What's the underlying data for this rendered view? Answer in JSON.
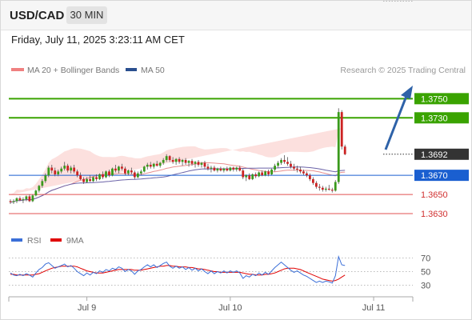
{
  "header": {
    "symbol": "USD/CAD",
    "timeframe": "30 MIN"
  },
  "datetime": "Friday, July 11, 2025 3:23:11 AM CET",
  "legend_top": {
    "bb_label": "MA 20 + Bollinger Bands",
    "ma50_label": "MA 50",
    "credit": "Research © 2025 Trading Central",
    "bb_color": "#f08080",
    "ma50_color": "#2a4f8f"
  },
  "legend_rsi": {
    "rsi_label": "RSI",
    "ma9_label": "9MA",
    "rsi_color": "#3b6fd8",
    "ma9_color": "#e00000"
  },
  "levels": [
    {
      "value": 1.375,
      "label": "1.3750",
      "kind": "resistance",
      "color": "#3aa300"
    },
    {
      "value": 1.373,
      "label": "1.3730",
      "kind": "resistance",
      "color": "#3aa300"
    },
    {
      "value": 1.3692,
      "label": "1.3692",
      "kind": "last",
      "color": "#333333"
    },
    {
      "value": 1.367,
      "label": "1.3670",
      "kind": "pivot",
      "color": "#1a5fd0"
    },
    {
      "value": 1.365,
      "label": "1.3650",
      "kind": "support",
      "color": "#e05050"
    },
    {
      "value": 1.363,
      "label": "1.3630",
      "kind": "support",
      "color": "#e05050"
    }
  ],
  "rsi_ticks": [
    "70",
    "50",
    "30"
  ],
  "chart_data": {
    "type": "candlestick",
    "x_tick_labels": [
      "Jul 9",
      "Jul 10",
      "Jul 11"
    ],
    "x_tick_positions_bar_index": [
      24,
      69,
      114
    ],
    "y_range": [
      1.362,
      1.3772
    ],
    "rsi_range": [
      20,
      80
    ],
    "bar_count": 118,
    "candles": [
      [
        1.3643,
        1.3645,
        1.364,
        1.3642
      ],
      [
        1.3642,
        1.3645,
        1.364,
        1.3643
      ],
      [
        1.3643,
        1.3647,
        1.3641,
        1.3646
      ],
      [
        1.3646,
        1.3648,
        1.3643,
        1.3644
      ],
      [
        1.3644,
        1.3647,
        1.3641,
        1.3645
      ],
      [
        1.3645,
        1.3649,
        1.3643,
        1.3648
      ],
      [
        1.3648,
        1.365,
        1.3642,
        1.3643
      ],
      [
        1.3643,
        1.365,
        1.3642,
        1.3649
      ],
      [
        1.3649,
        1.3655,
        1.3648,
        1.3654
      ],
      [
        1.3654,
        1.366,
        1.3652,
        1.3659
      ],
      [
        1.3659,
        1.3666,
        1.3657,
        1.3664
      ],
      [
        1.3664,
        1.3672,
        1.3662,
        1.367
      ],
      [
        1.367,
        1.368,
        1.3668,
        1.3678
      ],
      [
        1.3678,
        1.3681,
        1.3672,
        1.3675
      ],
      [
        1.3675,
        1.3678,
        1.3669,
        1.3671
      ],
      [
        1.3671,
        1.3676,
        1.3669,
        1.3674
      ],
      [
        1.3674,
        1.3679,
        1.3672,
        1.3677
      ],
      [
        1.3677,
        1.3684,
        1.3675,
        1.368
      ],
      [
        1.368,
        1.3682,
        1.3673,
        1.3675
      ],
      [
        1.3675,
        1.368,
        1.3672,
        1.3678
      ],
      [
        1.3678,
        1.3681,
        1.3672,
        1.3674
      ],
      [
        1.3674,
        1.3676,
        1.3668,
        1.367
      ],
      [
        1.367,
        1.3673,
        1.3665,
        1.3666
      ],
      [
        1.3666,
        1.3668,
        1.3661,
        1.3663
      ],
      [
        1.3663,
        1.3668,
        1.3662,
        1.3666
      ],
      [
        1.3666,
        1.367,
        1.3663,
        1.3664
      ],
      [
        1.3664,
        1.3669,
        1.3663,
        1.3668
      ],
      [
        1.3668,
        1.3671,
        1.3664,
        1.3666
      ],
      [
        1.3666,
        1.3672,
        1.3665,
        1.3671
      ],
      [
        1.3671,
        1.3674,
        1.3666,
        1.3668
      ],
      [
        1.3668,
        1.3675,
        1.3667,
        1.3674
      ],
      [
        1.3674,
        1.3676,
        1.3668,
        1.367
      ],
      [
        1.367,
        1.3678,
        1.3669,
        1.3677
      ],
      [
        1.3677,
        1.3681,
        1.3673,
        1.3675
      ],
      [
        1.3675,
        1.368,
        1.3672,
        1.3679
      ],
      [
        1.3679,
        1.3682,
        1.3675,
        1.3677
      ],
      [
        1.3677,
        1.3679,
        1.367,
        1.3672
      ],
      [
        1.3672,
        1.3676,
        1.367,
        1.3675
      ],
      [
        1.3675,
        1.3678,
        1.3671,
        1.3673
      ],
      [
        1.3673,
        1.3675,
        1.3666,
        1.3668
      ],
      [
        1.3668,
        1.3674,
        1.3667,
        1.3672
      ],
      [
        1.3672,
        1.3676,
        1.367,
        1.3674
      ],
      [
        1.3674,
        1.368,
        1.3673,
        1.3679
      ],
      [
        1.3679,
        1.3683,
        1.3676,
        1.3681
      ],
      [
        1.3681,
        1.3684,
        1.3677,
        1.3679
      ],
      [
        1.3679,
        1.3683,
        1.3677,
        1.3682
      ],
      [
        1.3682,
        1.3685,
        1.3679,
        1.368
      ],
      [
        1.368,
        1.3684,
        1.3678,
        1.3683
      ],
      [
        1.3683,
        1.3688,
        1.3681,
        1.3686
      ],
      [
        1.3686,
        1.3692,
        1.3684,
        1.369
      ],
      [
        1.369,
        1.3691,
        1.3684,
        1.3686
      ],
      [
        1.3686,
        1.3689,
        1.3682,
        1.3684
      ],
      [
        1.3684,
        1.3688,
        1.3681,
        1.3687
      ],
      [
        1.3687,
        1.3689,
        1.3682,
        1.3684
      ],
      [
        1.3684,
        1.3687,
        1.368,
        1.3686
      ],
      [
        1.3686,
        1.3688,
        1.3681,
        1.3683
      ],
      [
        1.3683,
        1.3686,
        1.3679,
        1.3685
      ],
      [
        1.3685,
        1.3687,
        1.368,
        1.3682
      ],
      [
        1.3682,
        1.3685,
        1.3678,
        1.3684
      ],
      [
        1.3684,
        1.3686,
        1.3679,
        1.3681
      ],
      [
        1.3681,
        1.3684,
        1.3678,
        1.3683
      ],
      [
        1.3683,
        1.3685,
        1.3677,
        1.3679
      ],
      [
        1.3679,
        1.3682,
        1.3675,
        1.3677
      ],
      [
        1.3677,
        1.368,
        1.3673,
        1.3678
      ],
      [
        1.3678,
        1.368,
        1.3674,
        1.3675
      ],
      [
        1.3675,
        1.3678,
        1.3673,
        1.3677
      ],
      [
        1.3677,
        1.3679,
        1.3674,
        1.3675
      ],
      [
        1.3675,
        1.3678,
        1.3673,
        1.3677
      ],
      [
        1.3677,
        1.3679,
        1.3674,
        1.3675
      ],
      [
        1.3675,
        1.3679,
        1.3674,
        1.3678
      ],
      [
        1.3678,
        1.3679,
        1.3674,
        1.3676
      ],
      [
        1.3676,
        1.3679,
        1.3674,
        1.3678
      ],
      [
        1.3678,
        1.368,
        1.3674,
        1.3675
      ],
      [
        1.3675,
        1.3677,
        1.3666,
        1.3668
      ],
      [
        1.3668,
        1.3671,
        1.3664,
        1.367
      ],
      [
        1.367,
        1.3672,
        1.3665,
        1.3666
      ],
      [
        1.3666,
        1.3672,
        1.3665,
        1.3671
      ],
      [
        1.3671,
        1.3673,
        1.3667,
        1.3669
      ],
      [
        1.3669,
        1.3674,
        1.3668,
        1.3673
      ],
      [
        1.3673,
        1.3675,
        1.3669,
        1.367
      ],
      [
        1.367,
        1.3675,
        1.3669,
        1.3674
      ],
      [
        1.3674,
        1.3676,
        1.3669,
        1.3671
      ],
      [
        1.3671,
        1.3677,
        1.367,
        1.3676
      ],
      [
        1.3676,
        1.3682,
        1.3674,
        1.368
      ],
      [
        1.368,
        1.3685,
        1.3678,
        1.3683
      ],
      [
        1.3683,
        1.3688,
        1.3681,
        1.3686
      ],
      [
        1.3686,
        1.3691,
        1.3682,
        1.3684
      ],
      [
        1.3684,
        1.3689,
        1.368,
        1.3682
      ],
      [
        1.3682,
        1.3685,
        1.3677,
        1.3679
      ],
      [
        1.3679,
        1.3682,
        1.3675,
        1.3677
      ],
      [
        1.3677,
        1.368,
        1.3673,
        1.3676
      ],
      [
        1.3676,
        1.3679,
        1.3672,
        1.3674
      ],
      [
        1.3674,
        1.3676,
        1.367,
        1.3672
      ],
      [
        1.3672,
        1.3674,
        1.3668,
        1.367
      ],
      [
        1.367,
        1.3672,
        1.3664,
        1.3666
      ],
      [
        1.3666,
        1.3668,
        1.366,
        1.3662
      ],
      [
        1.3662,
        1.3664,
        1.3656,
        1.3658
      ],
      [
        1.3658,
        1.3661,
        1.3654,
        1.3657
      ],
      [
        1.3657,
        1.3659,
        1.3653,
        1.3655
      ],
      [
        1.3655,
        1.3658,
        1.3653,
        1.3656
      ],
      [
        1.3656,
        1.366,
        1.3654,
        1.3655
      ],
      [
        1.3655,
        1.3657,
        1.3652,
        1.3654
      ],
      [
        1.3654,
        1.3665,
        1.3653,
        1.3663
      ],
      [
        1.3663,
        1.374,
        1.3661,
        1.3736
      ],
      [
        1.3736,
        1.3738,
        1.3697,
        1.37
      ],
      [
        1.37,
        1.3702,
        1.3691,
        1.3692
      ]
    ],
    "rsi": [
      48,
      45,
      44,
      46,
      44,
      47,
      45,
      42,
      48,
      53,
      56,
      61,
      63,
      59,
      55,
      57,
      59,
      61,
      57,
      59,
      55,
      50,
      47,
      44,
      48,
      45,
      49,
      47,
      51,
      49,
      53,
      51,
      55,
      53,
      57,
      55,
      50,
      53,
      51,
      46,
      51,
      53,
      57,
      60,
      57,
      60,
      56,
      59,
      62,
      64,
      58,
      55,
      58,
      55,
      57,
      53,
      56,
      52,
      55,
      51,
      54,
      50,
      47,
      51,
      47,
      50,
      48,
      51,
      48,
      51,
      49,
      51,
      48,
      40,
      44,
      42,
      46,
      44,
      48,
      45,
      49,
      46,
      51,
      56,
      60,
      64,
      60,
      56,
      52,
      49,
      51,
      48,
      45,
      43,
      40,
      37,
      34,
      36,
      34,
      36,
      35,
      33,
      44,
      72,
      60,
      59
    ],
    "rsi_ma9": [
      46,
      46,
      45,
      45,
      45,
      45,
      45,
      45,
      46,
      47,
      49,
      51,
      53,
      55,
      56,
      57,
      58,
      58,
      58,
      58,
      58,
      57,
      55,
      53,
      51,
      50,
      49,
      48,
      48,
      48,
      49,
      50,
      51,
      52,
      53,
      53,
      53,
      53,
      53,
      52,
      52,
      52,
      53,
      54,
      55,
      56,
      57,
      58,
      58,
      59,
      59,
      58,
      58,
      57,
      57,
      57,
      56,
      56,
      55,
      54,
      54,
      53,
      52,
      51,
      50,
      50,
      49,
      49,
      49,
      49,
      49,
      49,
      49,
      48,
      47,
      46,
      46,
      45,
      45,
      45,
      46,
      46,
      47,
      48,
      50,
      52,
      54,
      55,
      55,
      55,
      54,
      53,
      51,
      49,
      47,
      45,
      43,
      41,
      39,
      38,
      37,
      36,
      37,
      39,
      42,
      45
    ],
    "rsi_levels": [
      70,
      50,
      30
    ]
  }
}
